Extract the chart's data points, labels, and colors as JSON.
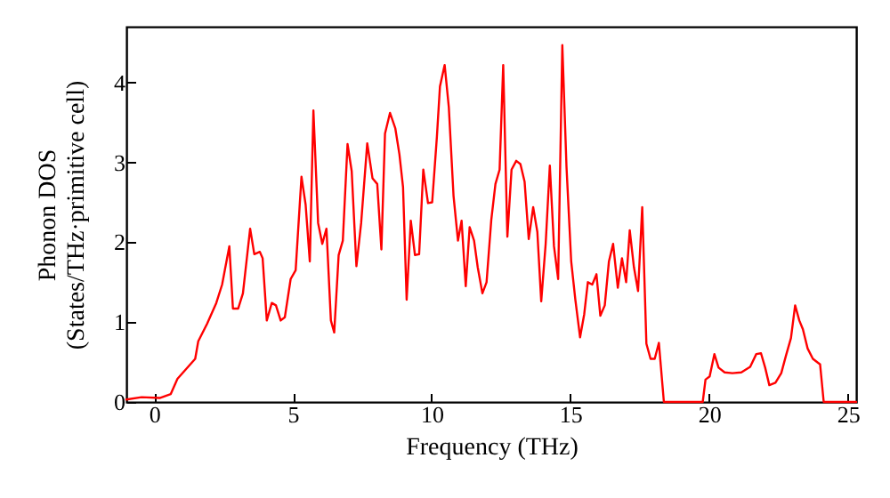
{
  "chart_data": {
    "type": "line",
    "xlabel": "Frequency (THz)",
    "ylabel": "Phonon DOS\n(States/THz·primitive cell)",
    "xlim": [
      -1,
      25.3
    ],
    "ylim": [
      0,
      4.7
    ],
    "xticks": [
      0,
      5,
      10,
      15,
      20,
      25
    ],
    "yticks": [
      0,
      1,
      2,
      3,
      4
    ],
    "grid": false,
    "marker": "none",
    "line_style": "solid",
    "x": [
      -1,
      -0.45,
      0.2,
      0.6,
      0.84,
      1.48,
      1.59,
      1.91,
      2.24,
      2.45,
      2.71,
      2.84,
      3.03,
      3.2,
      3.46,
      3.61,
      3.81,
      3.91,
      4.06,
      4.24,
      4.39,
      4.56,
      4.71,
      4.92,
      5.1,
      5.31,
      5.46,
      5.61,
      5.74,
      5.91,
      6.06,
      6.21,
      6.37,
      6.49,
      6.65,
      6.8,
      6.97,
      7.12,
      7.29,
      7.46,
      7.68,
      7.87,
      8.04,
      8.19,
      8.32,
      8.5,
      8.69,
      8.84,
      8.97,
      9.1,
      9.25,
      9.4,
      9.55,
      9.7,
      9.87,
      10.02,
      10.19,
      10.3,
      10.47,
      10.62,
      10.79,
      10.95,
      11.08,
      11.23,
      11.37,
      11.53,
      11.66,
      11.83,
      11.98,
      12.15,
      12.3,
      12.45,
      12.58,
      12.73,
      12.88,
      13.05,
      13.2,
      13.35,
      13.5,
      13.66,
      13.81,
      13.95,
      14.11,
      14.26,
      14.41,
      14.56,
      14.71,
      14.86,
      15.03,
      15.18,
      15.35,
      15.5,
      15.63,
      15.79,
      15.94,
      16.08,
      16.24,
      16.39,
      16.54,
      16.71,
      16.86,
      17.01,
      17.14,
      17.29,
      17.44,
      17.59,
      17.74,
      17.89,
      18.04,
      18.19,
      18.37,
      19.77,
      19.87,
      20.02,
      20.19,
      20.34,
      20.56,
      20.84,
      21.16,
      21.48,
      21.7,
      21.87,
      22.02,
      22.17,
      22.39,
      22.6,
      22.77,
      22.95,
      23.1,
      23.25,
      23.38,
      23.55,
      23.74,
      24.0,
      24.13,
      25.3
    ],
    "series": [
      {
        "color": "#ff0000",
        "values": [
          0.03,
          0.06,
          0.05,
          0.1,
          0.29,
          0.54,
          0.76,
          0.98,
          1.24,
          1.47,
          1.95,
          1.17,
          1.17,
          1.36,
          2.17,
          1.85,
          1.88,
          1.8,
          1.02,
          1.24,
          1.21,
          1.02,
          1.06,
          1.54,
          1.65,
          2.82,
          2.47,
          1.76,
          3.65,
          2.24,
          1.98,
          2.17,
          1.02,
          0.87,
          1.84,
          2.02,
          3.23,
          2.89,
          1.7,
          2.24,
          3.24,
          2.8,
          2.73,
          1.91,
          3.36,
          3.62,
          3.43,
          3.1,
          2.69,
          1.28,
          2.27,
          1.84,
          1.85,
          2.91,
          2.49,
          2.5,
          3.32,
          3.95,
          4.22,
          3.69,
          2.58,
          2.02,
          2.27,
          1.45,
          2.19,
          2.02,
          1.69,
          1.36,
          1.5,
          2.28,
          2.73,
          2.91,
          4.22,
          2.07,
          2.91,
          3.02,
          2.98,
          2.76,
          2.04,
          2.44,
          2.13,
          1.26,
          1.98,
          2.96,
          1.95,
          1.54,
          4.47,
          2.95,
          1.76,
          1.28,
          0.81,
          1.1,
          1.5,
          1.47,
          1.6,
          1.08,
          1.21,
          1.76,
          1.98,
          1.43,
          1.8,
          1.5,
          2.15,
          1.69,
          1.39,
          2.44,
          0.73,
          0.54,
          0.54,
          0.74,
          0,
          0,
          0.28,
          0.32,
          0.6,
          0.43,
          0.37,
          0.36,
          0.37,
          0.44,
          0.6,
          0.61,
          0.43,
          0.21,
          0.24,
          0.36,
          0.58,
          0.8,
          1.21,
          1.02,
          0.91,
          0.67,
          0.54,
          0.47,
          0,
          0
        ]
      }
    ]
  }
}
